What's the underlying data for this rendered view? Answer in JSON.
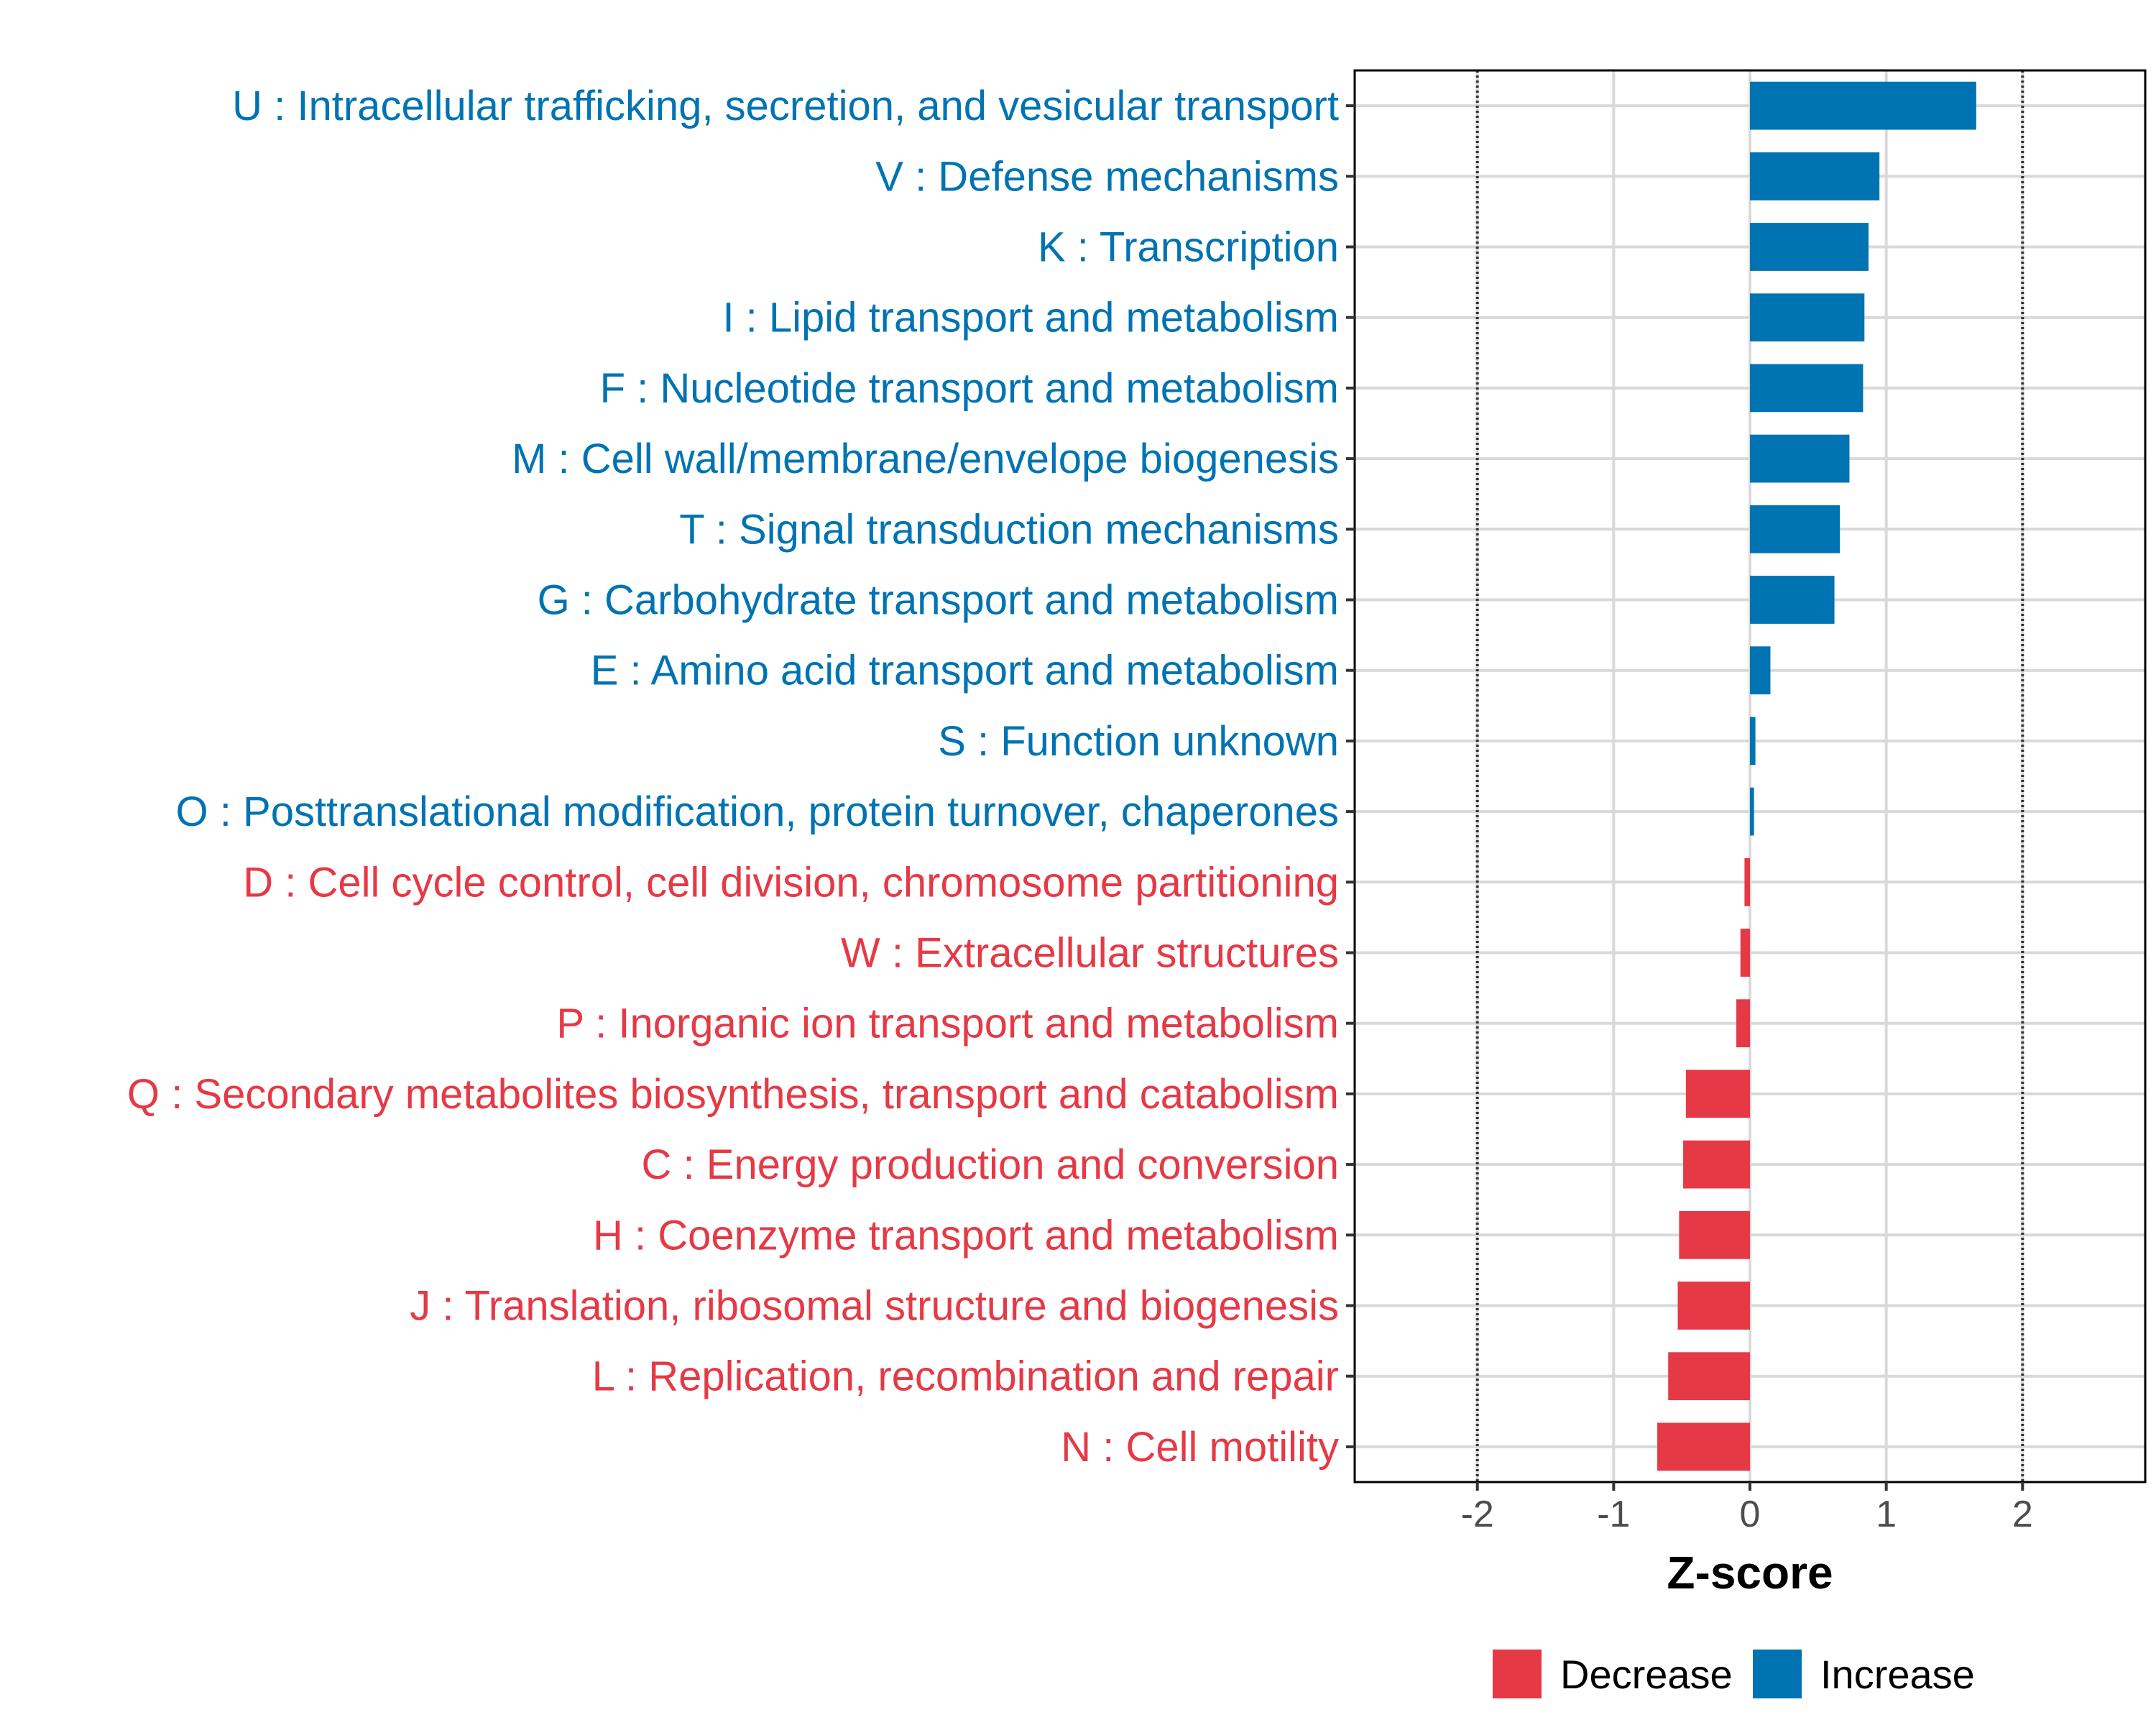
{
  "chart_data": {
    "type": "bar",
    "orientation": "horizontal",
    "categories": [
      "U : Intracellular trafficking, secretion, and vesicular transport",
      "V : Defense mechanisms",
      "K : Transcription",
      "I : Lipid transport and metabolism",
      "F : Nucleotide transport and metabolism",
      "M : Cell wall/membrane/envelope biogenesis",
      "T : Signal transduction mechanisms",
      "G : Carbohydrate transport and metabolism",
      "E : Amino acid transport and metabolism",
      "S : Function unknown",
      "O : Posttranslational modification, protein turnover, chaperones",
      "D : Cell cycle control, cell division, chromosome partitioning",
      "W : Extracellular structures",
      "P : Inorganic ion transport and metabolism",
      "Q : Secondary metabolites biosynthesis, transport and catabolism",
      "C : Energy production and conversion",
      "H : Coenzyme transport and metabolism",
      "J : Translation, ribosomal structure and biogenesis",
      "L : Replication, recombination and repair",
      "N : Cell motility"
    ],
    "values": [
      1.66,
      0.95,
      0.87,
      0.84,
      0.83,
      0.73,
      0.66,
      0.62,
      0.15,
      0.04,
      0.03,
      -0.04,
      -0.07,
      -0.1,
      -0.47,
      -0.49,
      -0.52,
      -0.53,
      -0.6,
      -0.68
    ],
    "groups": [
      "Increase",
      "Increase",
      "Increase",
      "Increase",
      "Increase",
      "Increase",
      "Increase",
      "Increase",
      "Increase",
      "Increase",
      "Increase",
      "Decrease",
      "Decrease",
      "Decrease",
      "Decrease",
      "Decrease",
      "Decrease",
      "Decrease",
      "Decrease",
      "Decrease"
    ],
    "xlabel": "Z-score",
    "xlim": [
      -2.9,
      2.9
    ],
    "xticks": [
      -2,
      -1,
      0,
      1,
      2
    ],
    "xtick_labels": [
      "-2",
      "-1",
      "0",
      "1",
      "2"
    ],
    "reference_lines": [
      -2,
      2
    ],
    "grid": true,
    "legend": {
      "position": "bottom",
      "entries": [
        {
          "label": "Decrease",
          "color": "#e63946"
        },
        {
          "label": "Increase",
          "color": "#0073b3"
        }
      ]
    },
    "colors": {
      "Decrease": "#e63946",
      "Increase": "#0073b3",
      "grid": "#d9d9d9",
      "ref_line": "#333333"
    }
  }
}
